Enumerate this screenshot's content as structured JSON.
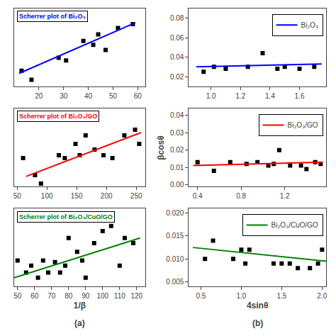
{
  "chart_data": [
    {
      "type": "scatter",
      "title": "Scherrer plot of Bi₂O₃",
      "xlim": [
        10,
        63
      ],
      "xticks": [
        20,
        30,
        40,
        50,
        60
      ],
      "ylim": [
        0.3,
        0.9
      ],
      "tick_labels": "x",
      "grid": false,
      "series": [
        {
          "type": "scatter",
          "marker": "square",
          "color": "black",
          "x": [
            13,
            17,
            28,
            31,
            38,
            42,
            44,
            47,
            52,
            58
          ],
          "values": [
            0.42,
            0.35,
            0.52,
            0.5,
            0.65,
            0.62,
            0.7,
            0.58,
            0.75,
            0.78
          ]
        },
        {
          "type": "line",
          "color": "blue",
          "x": [
            12,
            59
          ],
          "values": [
            0.4,
            0.79
          ]
        }
      ]
    },
    {
      "type": "scatter",
      "title": "Scherrer plot of Bi₂O₃/GO",
      "xlim": [
        45,
        265
      ],
      "xticks": [
        50,
        100,
        150,
        200,
        250
      ],
      "ylim": [
        0.3,
        0.85
      ],
      "tick_labels": "x",
      "grid": false,
      "series": [
        {
          "type": "scatter",
          "marker": "square",
          "color": "black",
          "x": [
            60,
            80,
            90,
            120,
            130,
            148,
            155,
            165,
            180,
            195,
            210,
            230,
            248,
            255
          ],
          "values": [
            0.5,
            0.38,
            0.32,
            0.52,
            0.5,
            0.6,
            0.52,
            0.66,
            0.56,
            0.52,
            0.5,
            0.66,
            0.7,
            0.6
          ]
        },
        {
          "type": "line",
          "color": "red",
          "x": [
            65,
            258
          ],
          "values": [
            0.37,
            0.68
          ]
        }
      ]
    },
    {
      "type": "scatter",
      "title": "Scherrer plot of Bi₂O₃/CuO/GO",
      "xlabel": "1/β",
      "annotations": [
        "(a)"
      ],
      "xlim": [
        48,
        125
      ],
      "xticks": [
        50,
        60,
        70,
        80,
        90,
        100,
        110,
        120
      ],
      "ylim": [
        0.3,
        0.75
      ],
      "tick_labels": "x",
      "grid": false,
      "series": [
        {
          "type": "scatter",
          "marker": "square",
          "color": "black",
          "x": [
            50,
            55,
            58,
            62,
            65,
            68,
            72,
            75,
            78,
            80,
            85,
            88,
            90,
            95,
            100,
            105,
            110,
            113,
            118
          ],
          "values": [
            0.45,
            0.38,
            0.42,
            0.35,
            0.45,
            0.38,
            0.44,
            0.38,
            0.42,
            0.58,
            0.5,
            0.45,
            0.35,
            0.55,
            0.62,
            0.65,
            0.42,
            0.58,
            0.55
          ]
        },
        {
          "type": "line",
          "color": "green",
          "x": [
            48,
            122
          ],
          "values": [
            0.35,
            0.58
          ]
        }
      ]
    },
    {
      "type": "scatter",
      "legend": "upper right",
      "grid": false,
      "xlim": [
        0.85,
        1.78
      ],
      "xticks": [
        {
          "value": 1,
          "label": "1.0"
        },
        1.2,
        1.4,
        1.6
      ],
      "ylim": [
        0.01,
        0.09
      ],
      "yticks": [
        0.02,
        0.04,
        0.06,
        0.08
      ],
      "series": [
        {
          "type": "scatter",
          "marker": "square",
          "color": "black",
          "x": [
            0.95,
            1.02,
            1.1,
            1.25,
            1.35,
            1.45,
            1.5,
            1.6,
            1.7
          ],
          "values": [
            0.025,
            0.03,
            0.028,
            0.03,
            0.044,
            0.028,
            0.03,
            0.028,
            0.03
          ]
        },
        {
          "type": "line",
          "name": "Bi₂O₃",
          "color": "blue",
          "x": [
            0.9,
            1.75
          ],
          "values": [
            0.03,
            0.033
          ]
        }
      ]
    },
    {
      "type": "scatter",
      "legend": "upper right",
      "grid": false,
      "ylabel": "βcosθ",
      "xlim": [
        0.32,
        1.58
      ],
      "xticks": [
        0.4,
        0.8,
        1.2
      ],
      "ylim": [
        -0.001,
        0.044
      ],
      "yticks": [
        {
          "value": 0,
          "label": "0.00"
        },
        0.01,
        0.02,
        0.03,
        0.04
      ],
      "series": [
        {
          "type": "scatter",
          "marker": "square",
          "color": "black",
          "x": [
            0.4,
            0.55,
            0.7,
            0.85,
            0.95,
            1.05,
            1.1,
            1.15,
            1.25,
            1.35,
            1.4,
            1.48,
            1.53
          ],
          "values": [
            0.013,
            0.008,
            0.013,
            0.012,
            0.013,
            0.011,
            0.012,
            0.02,
            0.011,
            0.011,
            0.009,
            0.013,
            0.012
          ]
        },
        {
          "type": "line",
          "name": "Bi₂O₃/GO",
          "color": "red",
          "x": [
            0.36,
            1.55
          ],
          "values": [
            0.011,
            0.013
          ]
        }
      ]
    },
    {
      "type": "scatter",
      "legend": "upper right",
      "grid": false,
      "xlabel": "4sinθ",
      "annotations": [
        "(b)"
      ],
      "xlim": [
        0.35,
        2.05
      ],
      "xticks": [
        0.5,
        {
          "value": 1,
          "label": "1.0"
        },
        1.5,
        {
          "value": 2,
          "label": "2.0"
        }
      ],
      "ylim": [
        0.004,
        0.021
      ],
      "yticks": [
        0.005,
        {
          "value": 0.01,
          "label": "0.010"
        },
        0.015,
        {
          "value": 0.02,
          "label": "0.020"
        }
      ],
      "series": [
        {
          "type": "scatter",
          "marker": "square",
          "color": "black",
          "x": [
            0.55,
            0.65,
            0.9,
            1.0,
            1.05,
            1.1,
            1.4,
            1.5,
            1.6,
            1.7,
            1.85,
            1.95,
            2.0
          ],
          "values": [
            0.01,
            0.014,
            0.01,
            0.012,
            0.009,
            0.012,
            0.009,
            0.009,
            0.009,
            0.008,
            0.008,
            0.009,
            0.012
          ]
        },
        {
          "type": "line",
          "name": "Bi₂O₃/CuO/GO",
          "color": "green",
          "x": [
            0.4,
            2.05
          ],
          "values": [
            0.0125,
            0.0095
          ]
        }
      ]
    }
  ]
}
